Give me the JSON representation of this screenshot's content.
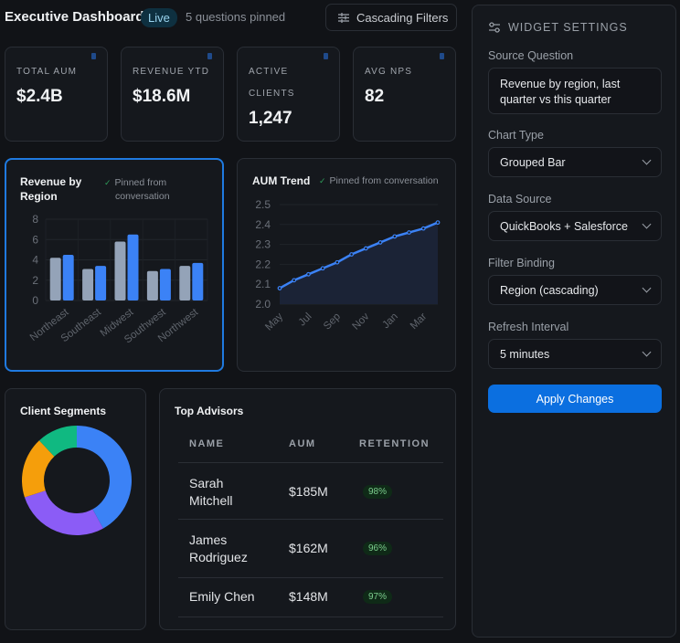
{
  "header": {
    "title": "Executive Dashboard",
    "status": "Live",
    "pinned_count": "5 questions pinned",
    "filters_button": "Cascading Filters"
  },
  "kpis": [
    {
      "label": "TOTAL AUM",
      "value": "$2.4B"
    },
    {
      "label": "REVENUE YTD",
      "value": "$18.6M"
    },
    {
      "label": "ACTIVE",
      "label2": "CLIENTS",
      "value": "1,247"
    },
    {
      "label": "AVG NPS",
      "value": "82"
    }
  ],
  "revenue_card": {
    "title_line1": "Revenue by",
    "title_line2": "Region",
    "pinned_line1": "Pinned from",
    "pinned_line2": "conversation"
  },
  "aum_card": {
    "title": "AUM Trend",
    "pinned": "Pinned from conversation"
  },
  "segments_card": {
    "title": "Client Segments"
  },
  "advisors_card": {
    "title": "Top Advisors",
    "columns": [
      "NAME",
      "AUM",
      "RETENTION"
    ],
    "rows": [
      {
        "name1": "Sarah",
        "name2": "Mitchell",
        "aum": "$185M",
        "retention": "98%"
      },
      {
        "name1": "James",
        "name2": "Rodriguez",
        "aum": "$162M",
        "retention": "96%"
      },
      {
        "name1": "Emily Chen",
        "name2": "",
        "aum": "$148M",
        "retention": "97%"
      }
    ]
  },
  "settings": {
    "title": "WIDGET SETTINGS",
    "source_question_label": "Source Question",
    "source_question_line1": "Revenue by region, last",
    "source_question_line2": "quarter vs this quarter",
    "chart_type_label": "Chart Type",
    "chart_type": "Grouped Bar",
    "data_source_label": "Data Source",
    "data_source": "QuickBooks + Salesforce",
    "filter_binding_label": "Filter Binding",
    "filter_binding": "Region (cascading)",
    "refresh_label": "Refresh Interval",
    "refresh": "5 minutes",
    "apply": "Apply Changes"
  },
  "colors": {
    "accent": "#3b82f6",
    "prior": "#94a3b8",
    "purple": "#8b5cf6",
    "orange": "#f59e0b",
    "green": "#10b981",
    "button": "#0b6fe0"
  },
  "chart_data": [
    {
      "type": "bar",
      "categories": [
        "Northeast",
        "Southeast",
        "Midwest",
        "Southwest",
        "Northwest"
      ],
      "series": [
        {
          "values": [
            4.2,
            3.1,
            5.8,
            2.9,
            3.4
          ],
          "color": "#94a3b8"
        },
        {
          "values": [
            4.5,
            3.4,
            6.5,
            3.1,
            3.7
          ],
          "color": "#3b82f6"
        }
      ],
      "ylim": [
        0,
        8
      ],
      "yticks": [
        "0",
        "2",
        "4",
        "6",
        "8"
      ],
      "grid": true
    },
    {
      "type": "area",
      "x": [
        "May",
        "Jun",
        "Jul",
        "Aug",
        "Sep",
        "Oct",
        "Nov",
        "Dec",
        "Jan",
        "Feb",
        "Mar",
        "Apr"
      ],
      "xticks": [
        "May",
        "Jul",
        "Sep",
        "Nov",
        "Jan",
        "Mar"
      ],
      "values": [
        2.08,
        2.12,
        2.15,
        2.18,
        2.21,
        2.25,
        2.28,
        2.31,
        2.34,
        2.36,
        2.38,
        2.41
      ],
      "ylim": [
        2.0,
        2.5
      ],
      "yticks": [
        "2.0",
        "2.1",
        "2.2",
        "2.3",
        "2.4",
        "2.5"
      ],
      "grid": true
    },
    {
      "type": "pie",
      "donut": true,
      "values": [
        42,
        28,
        18,
        12
      ],
      "colors": [
        "#3b82f6",
        "#8b5cf6",
        "#f59e0b",
        "#10b981"
      ]
    }
  ]
}
